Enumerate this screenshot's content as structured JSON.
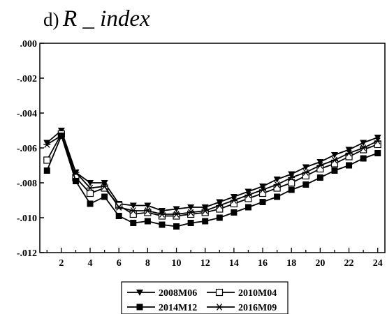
{
  "figure": {
    "label": "d)",
    "title": "R _ index"
  },
  "chart_data": {
    "type": "line",
    "title": "R _ index",
    "xlabel": "",
    "ylabel": "",
    "x": [
      1,
      2,
      3,
      4,
      5,
      6,
      7,
      8,
      9,
      10,
      11,
      12,
      13,
      14,
      15,
      16,
      17,
      18,
      19,
      20,
      21,
      22,
      23,
      24
    ],
    "xlim": [
      0.5,
      24.5
    ],
    "ylim": [
      -0.012,
      0.0
    ],
    "x_ticks": [
      2,
      4,
      6,
      8,
      10,
      12,
      14,
      16,
      18,
      20,
      22,
      24
    ],
    "x_tick_labels": [
      "2",
      "4",
      "6",
      "8",
      "10",
      "12",
      "14",
      "16",
      "18",
      "20",
      "22",
      "24"
    ],
    "y_ticks": [
      0.0,
      -0.002,
      -0.004,
      -0.006,
      -0.008,
      -0.01,
      -0.012
    ],
    "y_tick_labels": [
      ".000",
      "-.002",
      "-.004",
      "-.006",
      "-.008",
      "-.010",
      "-.012"
    ],
    "grid": false,
    "legend_position": "bottom",
    "series": [
      {
        "name": "2008M06",
        "marker": "triangle-down",
        "values": [
          -0.0057,
          -0.005,
          -0.0074,
          -0.008,
          -0.008,
          -0.0092,
          -0.0093,
          -0.0093,
          -0.0096,
          -0.0095,
          -0.0094,
          -0.0094,
          -0.0091,
          -0.0088,
          -0.0085,
          -0.0082,
          -0.0078,
          -0.0075,
          -0.0071,
          -0.0068,
          -0.0064,
          -0.0061,
          -0.0057,
          -0.0054
        ]
      },
      {
        "name": "2010M04",
        "marker": "square-open",
        "values": [
          -0.0067,
          -0.0052,
          -0.0077,
          -0.0086,
          -0.0083,
          -0.0093,
          -0.0098,
          -0.0097,
          -0.0099,
          -0.0099,
          -0.0098,
          -0.0097,
          -0.0095,
          -0.0092,
          -0.0089,
          -0.0086,
          -0.0083,
          -0.008,
          -0.0076,
          -0.0072,
          -0.0069,
          -0.0065,
          -0.0061,
          -0.0058
        ]
      },
      {
        "name": "2014M12",
        "marker": "square-filled",
        "values": [
          -0.0073,
          -0.0053,
          -0.0079,
          -0.0092,
          -0.0088,
          -0.0099,
          -0.0103,
          -0.0102,
          -0.0104,
          -0.0105,
          -0.0103,
          -0.0102,
          -0.01,
          -0.0097,
          -0.0094,
          -0.0091,
          -0.0088,
          -0.0084,
          -0.0081,
          -0.0077,
          -0.0073,
          -0.007,
          -0.0066,
          -0.0063
        ]
      },
      {
        "name": "2016M09",
        "marker": "star",
        "values": [
          -0.0058,
          -0.0053,
          -0.0074,
          -0.0083,
          -0.0082,
          -0.0094,
          -0.0096,
          -0.0096,
          -0.0098,
          -0.0098,
          -0.0097,
          -0.0096,
          -0.0093,
          -0.009,
          -0.0087,
          -0.0084,
          -0.0081,
          -0.0077,
          -0.0074,
          -0.007,
          -0.0067,
          -0.0063,
          -0.006,
          -0.0056
        ]
      }
    ]
  }
}
